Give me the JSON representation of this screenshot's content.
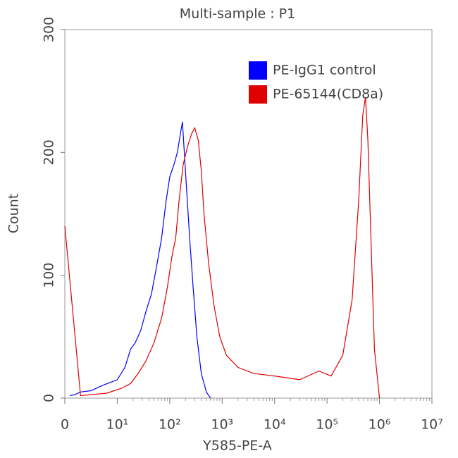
{
  "chart_data": {
    "type": "line",
    "title": "Multi-sample : P1",
    "xlabel": "Y585-PE-A",
    "ylabel": "Count",
    "xscale": "log",
    "xticks": [
      0,
      {
        "value": 10,
        "label": "10¹"
      },
      {
        "value": 100,
        "label": "10²"
      },
      {
        "value": 1000,
        "label": "10³"
      },
      {
        "value": 10000,
        "label": "10⁴"
      },
      {
        "value": 100000,
        "label": "10⁵"
      },
      {
        "value": 1000000,
        "label": "10⁶"
      },
      {
        "value": 10000000,
        "label": "10⁷"
      }
    ],
    "xlim": [
      0,
      10000000
    ],
    "ylim": [
      0,
      300
    ],
    "yticks": [
      0,
      100,
      200,
      300
    ],
    "legend": "upper right",
    "series": [
      {
        "name": "PE-IgG1 control",
        "color": "#0000ff",
        "x": [
          1,
          2,
          3,
          5,
          7,
          10,
          14,
          18,
          22,
          28,
          35,
          45,
          55,
          70,
          85,
          100,
          120,
          140,
          160,
          175,
          190,
          210,
          240,
          280,
          330,
          400,
          500,
          600
        ],
        "values": [
          2,
          3,
          5,
          6,
          10,
          15,
          25,
          40,
          45,
          55,
          70,
          85,
          105,
          130,
          160,
          180,
          190,
          200,
          215,
          225,
          200,
          170,
          130,
          90,
          50,
          20,
          5,
          0
        ]
      },
      {
        "name": "PE-65144(CD8a)",
        "color": "#e00000",
        "x": [
          0,
          3,
          8,
          12,
          18,
          25,
          35,
          50,
          70,
          90,
          110,
          130,
          150,
          180,
          220,
          260,
          300,
          350,
          400,
          450,
          550,
          700,
          900,
          1200,
          2000,
          4000,
          10000,
          30000,
          70000,
          120000,
          200000,
          300000,
          400000,
          480000,
          540000,
          600000,
          700000,
          800000,
          1000000
        ],
        "values": [
          140,
          2,
          4,
          8,
          12,
          20,
          30,
          45,
          65,
          90,
          115,
          130,
          160,
          190,
          205,
          215,
          220,
          210,
          185,
          150,
          110,
          75,
          50,
          35,
          25,
          20,
          18,
          15,
          22,
          18,
          35,
          80,
          160,
          230,
          245,
          210,
          120,
          40,
          0
        ]
      }
    ]
  }
}
